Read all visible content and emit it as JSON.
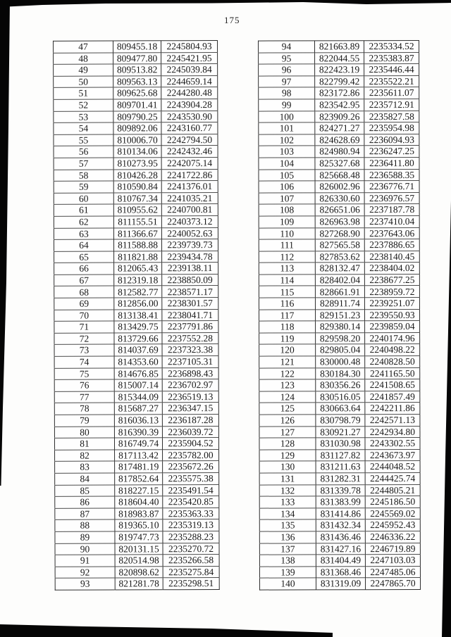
{
  "page": {
    "number": "175"
  },
  "tables": {
    "left": {
      "rows": [
        [
          "47",
          "809455.18",
          "2245804.93"
        ],
        [
          "48",
          "809477.80",
          "2245421.95"
        ],
        [
          "49",
          "809513.82",
          "2245039.84"
        ],
        [
          "50",
          "809563.13",
          "2244659.14"
        ],
        [
          "51",
          "809625.68",
          "2244280.48"
        ],
        [
          "52",
          "809701.41",
          "2243904.28"
        ],
        [
          "53",
          "809790.25",
          "2243530.90"
        ],
        [
          "54",
          "809892.06",
          "2243160.77"
        ],
        [
          "55",
          "810006.70",
          "2242794.50"
        ],
        [
          "56",
          "810134.06",
          "2242432.46"
        ],
        [
          "57",
          "810273.95",
          "2242075.14"
        ],
        [
          "58",
          "810426.28",
          "2241722.86"
        ],
        [
          "59",
          "810590.84",
          "2241376.01"
        ],
        [
          "60",
          "810767.34",
          "2241035.21"
        ],
        [
          "61",
          "810955.62",
          "2240700.81"
        ],
        [
          "62",
          "811155.51",
          "2240373.12"
        ],
        [
          "63",
          "811366.67",
          "2240052.63"
        ],
        [
          "64",
          "811588.88",
          "2239739.73"
        ],
        [
          "65",
          "811821.88",
          "2239434.78"
        ],
        [
          "66",
          "812065.43",
          "2239138.11"
        ],
        [
          "67",
          "812319.18",
          "2238850.09"
        ],
        [
          "68",
          "812582.77",
          "2238571.17"
        ],
        [
          "69",
          "812856.00",
          "2238301.57"
        ],
        [
          "70",
          "813138.41",
          "2238041.71"
        ],
        [
          "71",
          "813429.75",
          "2237791.86"
        ],
        [
          "72",
          "813729.66",
          "2237552.28"
        ],
        [
          "73",
          "814037.69",
          "2237323.38"
        ],
        [
          "74",
          "814353.60",
          "2237105.31"
        ],
        [
          "75",
          "814676.85",
          "2236898.43"
        ],
        [
          "76",
          "815007.14",
          "2236702.97"
        ],
        [
          "77",
          "815344.09",
          "2236519.13"
        ],
        [
          "78",
          "815687.27",
          "2236347.15"
        ],
        [
          "79",
          "816036.13",
          "2236187.28"
        ],
        [
          "80",
          "816390.39",
          "2236039.72"
        ],
        [
          "81",
          "816749.74",
          "2235904.52"
        ],
        [
          "82",
          "817113.42",
          "2235782.00"
        ],
        [
          "83",
          "817481.19",
          "2235672.26"
        ],
        [
          "84",
          "817852.64",
          "2235575.38"
        ],
        [
          "85",
          "818227.15",
          "2235491.54"
        ],
        [
          "86",
          "818604.40",
          "2235420.85"
        ],
        [
          "87",
          "818983.87",
          "2235363.33"
        ],
        [
          "88",
          "819365.10",
          "2235319.13"
        ],
        [
          "89",
          "819747.73",
          "2235288.23"
        ],
        [
          "90",
          "820131.15",
          "2235270.72"
        ],
        [
          "91",
          "820514.98",
          "2235266.58"
        ],
        [
          "92",
          "820898.62",
          "2235275.84"
        ],
        [
          "93",
          "821281.78",
          "2235298.51"
        ]
      ]
    },
    "right": {
      "rows": [
        [
          "94",
          "821663.89",
          "2235334.52"
        ],
        [
          "95",
          "822044.55",
          "2235383.87"
        ],
        [
          "96",
          "822423.19",
          "2235446.44"
        ],
        [
          "97",
          "822799.42",
          "2235522.21"
        ],
        [
          "98",
          "823172.86",
          "2235611.07"
        ],
        [
          "99",
          "823542.95",
          "2235712.91"
        ],
        [
          "100",
          "823909.26",
          "2235827.58"
        ],
        [
          "101",
          "824271.27",
          "2235954.98"
        ],
        [
          "102",
          "824628.69",
          "2236094.93"
        ],
        [
          "103",
          "824980.94",
          "2236247.25"
        ],
        [
          "104",
          "825327.68",
          "2236411.80"
        ],
        [
          "105",
          "825668.48",
          "2236588.35"
        ],
        [
          "106",
          "826002.96",
          "2236776.71"
        ],
        [
          "107",
          "826330.60",
          "2236976.57"
        ],
        [
          "108",
          "826651.06",
          "2237187.78"
        ],
        [
          "109",
          "826963.98",
          "2237410.04"
        ],
        [
          "110",
          "827268.90",
          "2237643.06"
        ],
        [
          "111",
          "827565.58",
          "2237886.65"
        ],
        [
          "112",
          "827853.62",
          "2238140.45"
        ],
        [
          "113",
          "828132.47",
          "2238404.02"
        ],
        [
          "114",
          "828402.04",
          "2238677.25"
        ],
        [
          "115",
          "828661.91",
          "2238959.72"
        ],
        [
          "116",
          "828911.74",
          "2239251.07"
        ],
        [
          "117",
          "829151.23",
          "2239550.93"
        ],
        [
          "118",
          "829380.14",
          "2239859.04"
        ],
        [
          "119",
          "829598.20",
          "2240174.96"
        ],
        [
          "120",
          "829805.04",
          "2240498.22"
        ],
        [
          "121",
          "830000.48",
          "2240828.50"
        ],
        [
          "122",
          "830184.30",
          "2241165.50"
        ],
        [
          "123",
          "830356.26",
          "2241508.65"
        ],
        [
          "124",
          "830516.05",
          "2241857.49"
        ],
        [
          "125",
          "830663.64",
          "2242211.86"
        ],
        [
          "126",
          "830798.79",
          "2242571.13"
        ],
        [
          "127",
          "830921.27",
          "2242934.80"
        ],
        [
          "128",
          "831030.98",
          "2243302.55"
        ],
        [
          "129",
          "831127.82",
          "2243673.97"
        ],
        [
          "130",
          "831211.63",
          "2244048.52"
        ],
        [
          "131",
          "831282.31",
          "2244425.74"
        ],
        [
          "132",
          "831339.78",
          "2244805.21"
        ],
        [
          "133",
          "831383.99",
          "2245186.50"
        ],
        [
          "134",
          "831414.86",
          "2245569.02"
        ],
        [
          "135",
          "831432.34",
          "2245952.43"
        ],
        [
          "136",
          "831436.46",
          "2246336.22"
        ],
        [
          "137",
          "831427.16",
          "2246719.89"
        ],
        [
          "138",
          "831404.49",
          "2247103.03"
        ],
        [
          "139",
          "831368.46",
          "2247485.06"
        ],
        [
          "140",
          "831319.09",
          "2247865.70"
        ]
      ]
    }
  }
}
